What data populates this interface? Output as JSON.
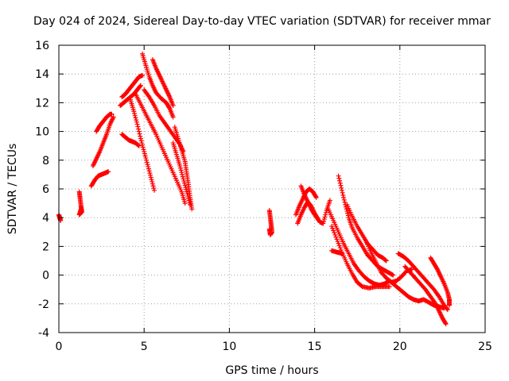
{
  "chart_data": {
    "type": "scatter",
    "title": "Day 024 of 2024, Sidereal Day-to-day VTEC variation (SDTVAR) for receiver mmar",
    "xlabel": "GPS time / hours",
    "ylabel": "SDTVAR / TECUs",
    "xlim": [
      0,
      25
    ],
    "ylim": [
      -4,
      16
    ],
    "xticks": [
      0,
      5,
      10,
      15,
      20,
      25
    ],
    "yticks": [
      -4,
      -2,
      0,
      2,
      4,
      6,
      8,
      10,
      12,
      14,
      16
    ],
    "grid": true,
    "marker": "+",
    "color": "#ff0000",
    "series": [
      {
        "name": "trace-01",
        "points": [
          [
            0.0,
            4.2
          ],
          [
            0.05,
            4.0
          ],
          [
            0.1,
            3.8
          ]
        ]
      },
      {
        "name": "trace-02",
        "points": [
          [
            1.2,
            5.8
          ],
          [
            1.25,
            5.3
          ],
          [
            1.3,
            4.8
          ],
          [
            1.35,
            4.4
          ],
          [
            1.2,
            4.2
          ],
          [
            1.3,
            4.6
          ]
        ]
      },
      {
        "name": "trace-03",
        "points": [
          [
            1.9,
            6.2
          ],
          [
            2.1,
            6.6
          ],
          [
            2.3,
            6.9
          ],
          [
            2.5,
            7.0
          ],
          [
            2.7,
            7.1
          ],
          [
            2.9,
            7.2
          ]
        ]
      },
      {
        "name": "trace-04",
        "points": [
          [
            2.0,
            7.6
          ],
          [
            2.2,
            8.1
          ],
          [
            2.4,
            8.6
          ],
          [
            2.6,
            9.2
          ],
          [
            2.8,
            9.8
          ],
          [
            3.0,
            10.5
          ],
          [
            3.2,
            11.0
          ]
        ]
      },
      {
        "name": "trace-05",
        "points": [
          [
            2.2,
            10.0
          ],
          [
            2.4,
            10.4
          ],
          [
            2.6,
            10.7
          ],
          [
            2.8,
            11.0
          ],
          [
            3.0,
            11.2
          ],
          [
            3.1,
            11.2
          ]
        ]
      },
      {
        "name": "trace-06",
        "points": [
          [
            3.7,
            12.4
          ],
          [
            3.9,
            12.6
          ],
          [
            4.1,
            12.9
          ],
          [
            4.3,
            13.2
          ],
          [
            4.5,
            13.5
          ],
          [
            4.7,
            13.8
          ],
          [
            4.9,
            13.9
          ]
        ]
      },
      {
        "name": "trace-07",
        "points": [
          [
            3.6,
            11.8
          ],
          [
            3.8,
            12.0
          ],
          [
            4.0,
            12.2
          ],
          [
            4.2,
            12.4
          ],
          [
            4.4,
            12.6
          ],
          [
            4.6,
            12.9
          ],
          [
            4.8,
            13.2
          ]
        ]
      },
      {
        "name": "trace-08",
        "points": [
          [
            3.7,
            9.8
          ],
          [
            3.9,
            9.6
          ],
          [
            4.1,
            9.4
          ],
          [
            4.3,
            9.3
          ],
          [
            4.5,
            9.2
          ],
          [
            4.7,
            9.0
          ]
        ]
      },
      {
        "name": "trace-09",
        "points": [
          [
            4.2,
            12.2
          ],
          [
            4.4,
            11.4
          ],
          [
            4.6,
            10.5
          ],
          [
            4.8,
            9.5
          ],
          [
            5.0,
            8.6
          ],
          [
            5.2,
            7.7
          ],
          [
            5.4,
            6.8
          ],
          [
            5.6,
            5.9
          ]
        ]
      },
      {
        "name": "trace-10",
        "points": [
          [
            4.5,
            12.6
          ],
          [
            4.8,
            11.9
          ],
          [
            5.1,
            11.2
          ],
          [
            5.4,
            10.5
          ],
          [
            5.7,
            9.8
          ],
          [
            6.0,
            9.0
          ],
          [
            6.3,
            8.2
          ],
          [
            6.6,
            7.4
          ],
          [
            6.9,
            6.6
          ],
          [
            7.2,
            5.8
          ],
          [
            7.4,
            5.0
          ]
        ]
      },
      {
        "name": "trace-11",
        "points": [
          [
            4.9,
            15.4
          ],
          [
            5.1,
            14.6
          ],
          [
            5.3,
            13.8
          ],
          [
            5.5,
            13.2
          ],
          [
            5.7,
            12.7
          ],
          [
            6.0,
            12.3
          ],
          [
            6.3,
            12.0
          ],
          [
            6.5,
            11.6
          ],
          [
            6.7,
            11.0
          ]
        ]
      },
      {
        "name": "trace-12",
        "points": [
          [
            5.5,
            15.0
          ],
          [
            5.7,
            14.4
          ],
          [
            5.9,
            13.9
          ],
          [
            6.1,
            13.4
          ],
          [
            6.3,
            12.9
          ],
          [
            6.5,
            12.4
          ],
          [
            6.7,
            11.8
          ]
        ]
      },
      {
        "name": "trace-13",
        "points": [
          [
            5.0,
            12.9
          ],
          [
            5.3,
            12.4
          ],
          [
            5.6,
            11.8
          ],
          [
            5.9,
            11.1
          ],
          [
            6.2,
            10.6
          ],
          [
            6.5,
            10.1
          ],
          [
            6.8,
            9.6
          ],
          [
            7.1,
            9.1
          ],
          [
            7.3,
            8.6
          ]
        ]
      },
      {
        "name": "trace-14",
        "points": [
          [
            6.8,
            10.3
          ],
          [
            7.0,
            9.5
          ],
          [
            7.2,
            8.7
          ],
          [
            7.4,
            7.9
          ],
          [
            7.5,
            7.1
          ],
          [
            7.6,
            6.3
          ],
          [
            7.7,
            5.4
          ],
          [
            7.8,
            4.6
          ]
        ]
      },
      {
        "name": "trace-15",
        "points": [
          [
            6.7,
            9.2
          ],
          [
            6.9,
            8.4
          ],
          [
            7.1,
            7.6
          ],
          [
            7.3,
            6.7
          ],
          [
            7.5,
            5.8
          ],
          [
            7.7,
            4.9
          ]
        ]
      },
      {
        "name": "trace-16",
        "points": [
          [
            12.35,
            4.5
          ],
          [
            12.4,
            4.0
          ],
          [
            12.45,
            3.5
          ],
          [
            12.5,
            3.0
          ],
          [
            12.4,
            2.8
          ],
          [
            12.35,
            3.2
          ]
        ]
      },
      {
        "name": "trace-17",
        "points": [
          [
            13.9,
            4.2
          ],
          [
            14.1,
            4.8
          ],
          [
            14.3,
            5.3
          ],
          [
            14.5,
            5.8
          ],
          [
            14.7,
            6.0
          ],
          [
            14.9,
            5.8
          ],
          [
            15.1,
            5.4
          ]
        ]
      },
      {
        "name": "trace-18",
        "points": [
          [
            14.0,
            3.6
          ],
          [
            14.2,
            4.2
          ],
          [
            14.4,
            4.7
          ],
          [
            14.6,
            5.1
          ],
          [
            14.8,
            4.8
          ],
          [
            15.0,
            4.3
          ],
          [
            15.2,
            3.9
          ]
        ]
      },
      {
        "name": "trace-19",
        "points": [
          [
            14.2,
            6.2
          ],
          [
            14.4,
            5.6
          ],
          [
            14.6,
            5.1
          ],
          [
            14.8,
            4.6
          ],
          [
            15.0,
            4.2
          ],
          [
            15.3,
            3.7
          ],
          [
            15.5,
            3.6
          ],
          [
            15.7,
            4.5
          ],
          [
            15.9,
            5.2
          ]
        ]
      },
      {
        "name": "trace-20",
        "points": [
          [
            16.0,
            1.7
          ],
          [
            16.3,
            1.6
          ],
          [
            16.6,
            1.5
          ]
        ]
      },
      {
        "name": "trace-21",
        "points": [
          [
            15.8,
            4.6
          ],
          [
            16.1,
            3.8
          ],
          [
            16.4,
            3.0
          ],
          [
            16.7,
            2.2
          ],
          [
            17.0,
            1.5
          ],
          [
            17.3,
            0.8
          ],
          [
            17.6,
            0.3
          ],
          [
            17.9,
            -0.1
          ],
          [
            18.2,
            -0.4
          ],
          [
            18.5,
            -0.6
          ],
          [
            18.8,
            -0.7
          ],
          [
            19.1,
            -0.6
          ],
          [
            19.4,
            -0.4
          ]
        ]
      },
      {
        "name": "trace-22",
        "points": [
          [
            16.4,
            6.9
          ],
          [
            16.6,
            5.9
          ],
          [
            16.8,
            4.9
          ],
          [
            17.0,
            4.0
          ],
          [
            17.2,
            3.3
          ],
          [
            17.5,
            2.6
          ],
          [
            17.8,
            2.0
          ],
          [
            18.1,
            1.4
          ],
          [
            18.4,
            1.0
          ],
          [
            18.7,
            0.6
          ],
          [
            19.0,
            0.4
          ],
          [
            19.3,
            0.2
          ],
          [
            19.6,
            0.0
          ]
        ]
      },
      {
        "name": "trace-23",
        "points": [
          [
            16.0,
            3.4
          ],
          [
            16.3,
            2.5
          ],
          [
            16.6,
            1.6
          ],
          [
            16.9,
            0.8
          ],
          [
            17.2,
            0.1
          ],
          [
            17.5,
            -0.5
          ],
          [
            17.8,
            -0.8
          ],
          [
            18.2,
            -0.9
          ],
          [
            18.6,
            -0.8
          ],
          [
            19.0,
            -0.8
          ],
          [
            19.4,
            -0.8
          ]
        ]
      },
      {
        "name": "trace-24",
        "points": [
          [
            16.9,
            4.9
          ],
          [
            17.2,
            4.1
          ],
          [
            17.5,
            3.4
          ],
          [
            17.8,
            2.8
          ],
          [
            18.1,
            2.2
          ],
          [
            18.4,
            1.8
          ],
          [
            18.7,
            1.4
          ],
          [
            19.0,
            1.2
          ],
          [
            19.2,
            1.0
          ]
        ]
      },
      {
        "name": "trace-25",
        "points": [
          [
            18.0,
            2.4
          ],
          [
            18.3,
            1.6
          ],
          [
            18.6,
            0.9
          ],
          [
            18.9,
            0.2
          ],
          [
            19.2,
            -0.2
          ],
          [
            19.5,
            -0.5
          ],
          [
            19.8,
            -0.4
          ],
          [
            20.1,
            -0.1
          ],
          [
            20.4,
            0.3
          ],
          [
            20.7,
            0.4
          ]
        ]
      },
      {
        "name": "trace-26",
        "points": [
          [
            19.3,
            -0.3
          ],
          [
            19.6,
            -0.6
          ],
          [
            19.9,
            -0.9
          ],
          [
            20.2,
            -1.2
          ],
          [
            20.5,
            -1.5
          ],
          [
            20.8,
            -1.7
          ],
          [
            21.1,
            -1.8
          ],
          [
            21.4,
            -1.7
          ],
          [
            21.7,
            -1.9
          ],
          [
            22.0,
            -2.1
          ],
          [
            22.3,
            -2.2
          ],
          [
            22.6,
            -2.3
          ]
        ]
      },
      {
        "name": "trace-27",
        "points": [
          [
            19.9,
            1.5
          ],
          [
            20.2,
            1.3
          ],
          [
            20.5,
            1.0
          ],
          [
            20.8,
            0.6
          ],
          [
            21.1,
            0.2
          ],
          [
            21.4,
            -0.2
          ],
          [
            21.7,
            -0.6
          ],
          [
            22.0,
            -1.0
          ],
          [
            22.3,
            -1.5
          ],
          [
            22.6,
            -2.1
          ],
          [
            22.8,
            -2.4
          ]
        ]
      },
      {
        "name": "trace-28",
        "points": [
          [
            20.3,
            0.6
          ],
          [
            20.6,
            0.2
          ],
          [
            20.9,
            -0.2
          ],
          [
            21.2,
            -0.6
          ],
          [
            21.5,
            -1.0
          ],
          [
            21.8,
            -1.5
          ],
          [
            22.1,
            -2.0
          ],
          [
            22.3,
            -2.5
          ],
          [
            22.5,
            -3.0
          ],
          [
            22.7,
            -3.4
          ]
        ]
      },
      {
        "name": "trace-29",
        "points": [
          [
            21.8,
            1.2
          ],
          [
            22.0,
            0.8
          ],
          [
            22.2,
            0.4
          ],
          [
            22.4,
            -0.1
          ],
          [
            22.6,
            -0.6
          ],
          [
            22.8,
            -1.2
          ],
          [
            22.9,
            -1.7
          ],
          [
            22.9,
            -2.1
          ]
        ]
      }
    ]
  }
}
